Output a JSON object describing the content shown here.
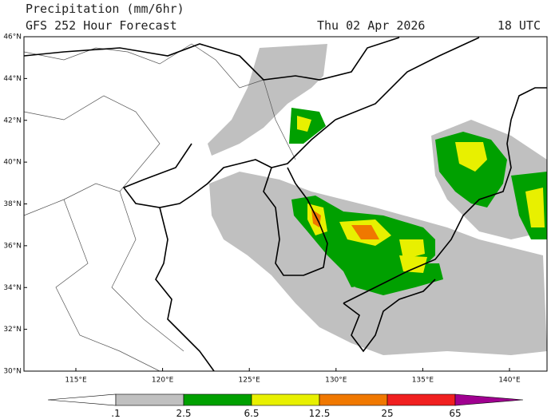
{
  "header": {
    "title": "Precipitation (mm/6hr)",
    "subtitle": "GFS 252 Hour Forecast",
    "valid_time": "Thu 02 Apr 2026",
    "hour": "18 UTC"
  },
  "map": {
    "lat_labels": [
      "46°N",
      "44°N",
      "42°N",
      "40°N",
      "38°N",
      "36°N",
      "34°N",
      "32°N",
      "30°N"
    ],
    "lon_labels": [
      "115°E",
      "120°E",
      "125°E",
      "130°E",
      "135°E",
      "140°E"
    ]
  },
  "legend": {
    "labels": [
      ".1",
      "2.5",
      "6.5",
      "12.5",
      "25",
      "65"
    ]
  }
}
